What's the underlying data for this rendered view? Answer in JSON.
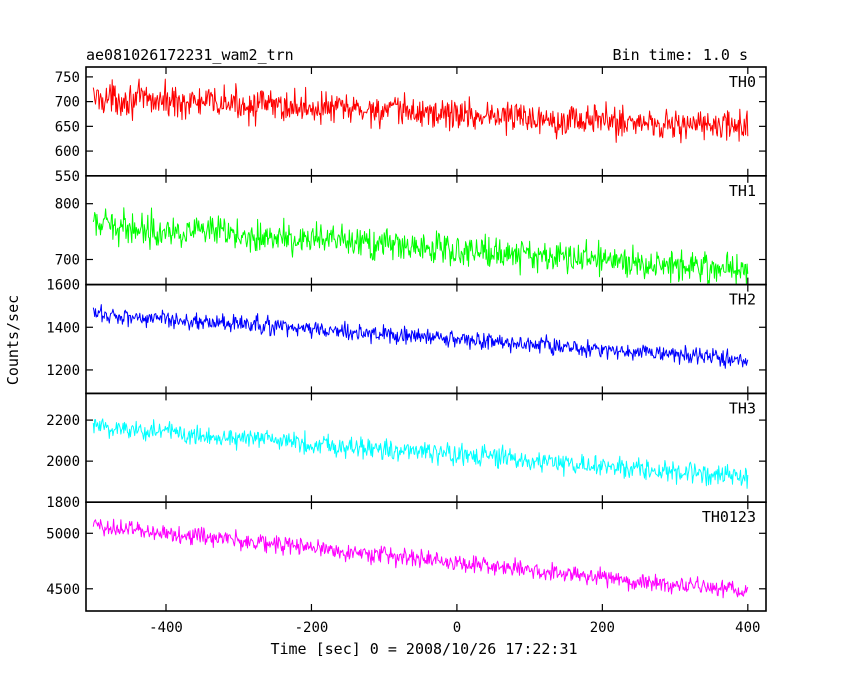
{
  "chart_data": {
    "type": "line",
    "title": "ae081026172231_wam2_trn",
    "subtitle": "Bin time: 1.0 s",
    "xlabel": "Time [sec] 0 = 2008/10/26 17:22:31",
    "ylabel": "Counts/sec",
    "xlim": [
      -510,
      425
    ],
    "x_ticks": [
      -400,
      -200,
      0,
      200,
      400
    ],
    "x_range": [
      -500,
      400
    ],
    "bin_time": 1.0,
    "grid": false,
    "panels": [
      {
        "name": "TH0",
        "color": "#ff0000",
        "ylim": [
          550,
          770
        ],
        "y_ticks": [
          550,
          600,
          650,
          700,
          750
        ],
        "trend_start": 708,
        "trend_end": 648,
        "noise_amplitude": 30
      },
      {
        "name": "TH1",
        "color": "#00ff00",
        "ylim": [
          655,
          850
        ],
        "y_ticks": [
          700,
          800
        ],
        "trend_start": 762,
        "trend_end": 682,
        "noise_amplitude": 26
      },
      {
        "name": "TH2",
        "color": "#0000ff",
        "ylim": [
          1090,
          1600
        ],
        "y_ticks": [
          1200,
          1400,
          1600
        ],
        "trend_start": 1462,
        "trend_end": 1248,
        "noise_amplitude": 38
      },
      {
        "name": "TH3",
        "color": "#00ffff",
        "ylim": [
          1800,
          2330
        ],
        "y_ticks": [
          1800,
          2000,
          2200
        ],
        "trend_start": 2170,
        "trend_end": 1918,
        "noise_amplitude": 48
      },
      {
        "name": "TH0123",
        "color": "#ff00ff",
        "ylim": [
          4300,
          5280
        ],
        "y_ticks": [
          4500,
          5000
        ],
        "trend_start": 5070,
        "trend_end": 4470,
        "noise_amplitude": 75
      }
    ]
  }
}
